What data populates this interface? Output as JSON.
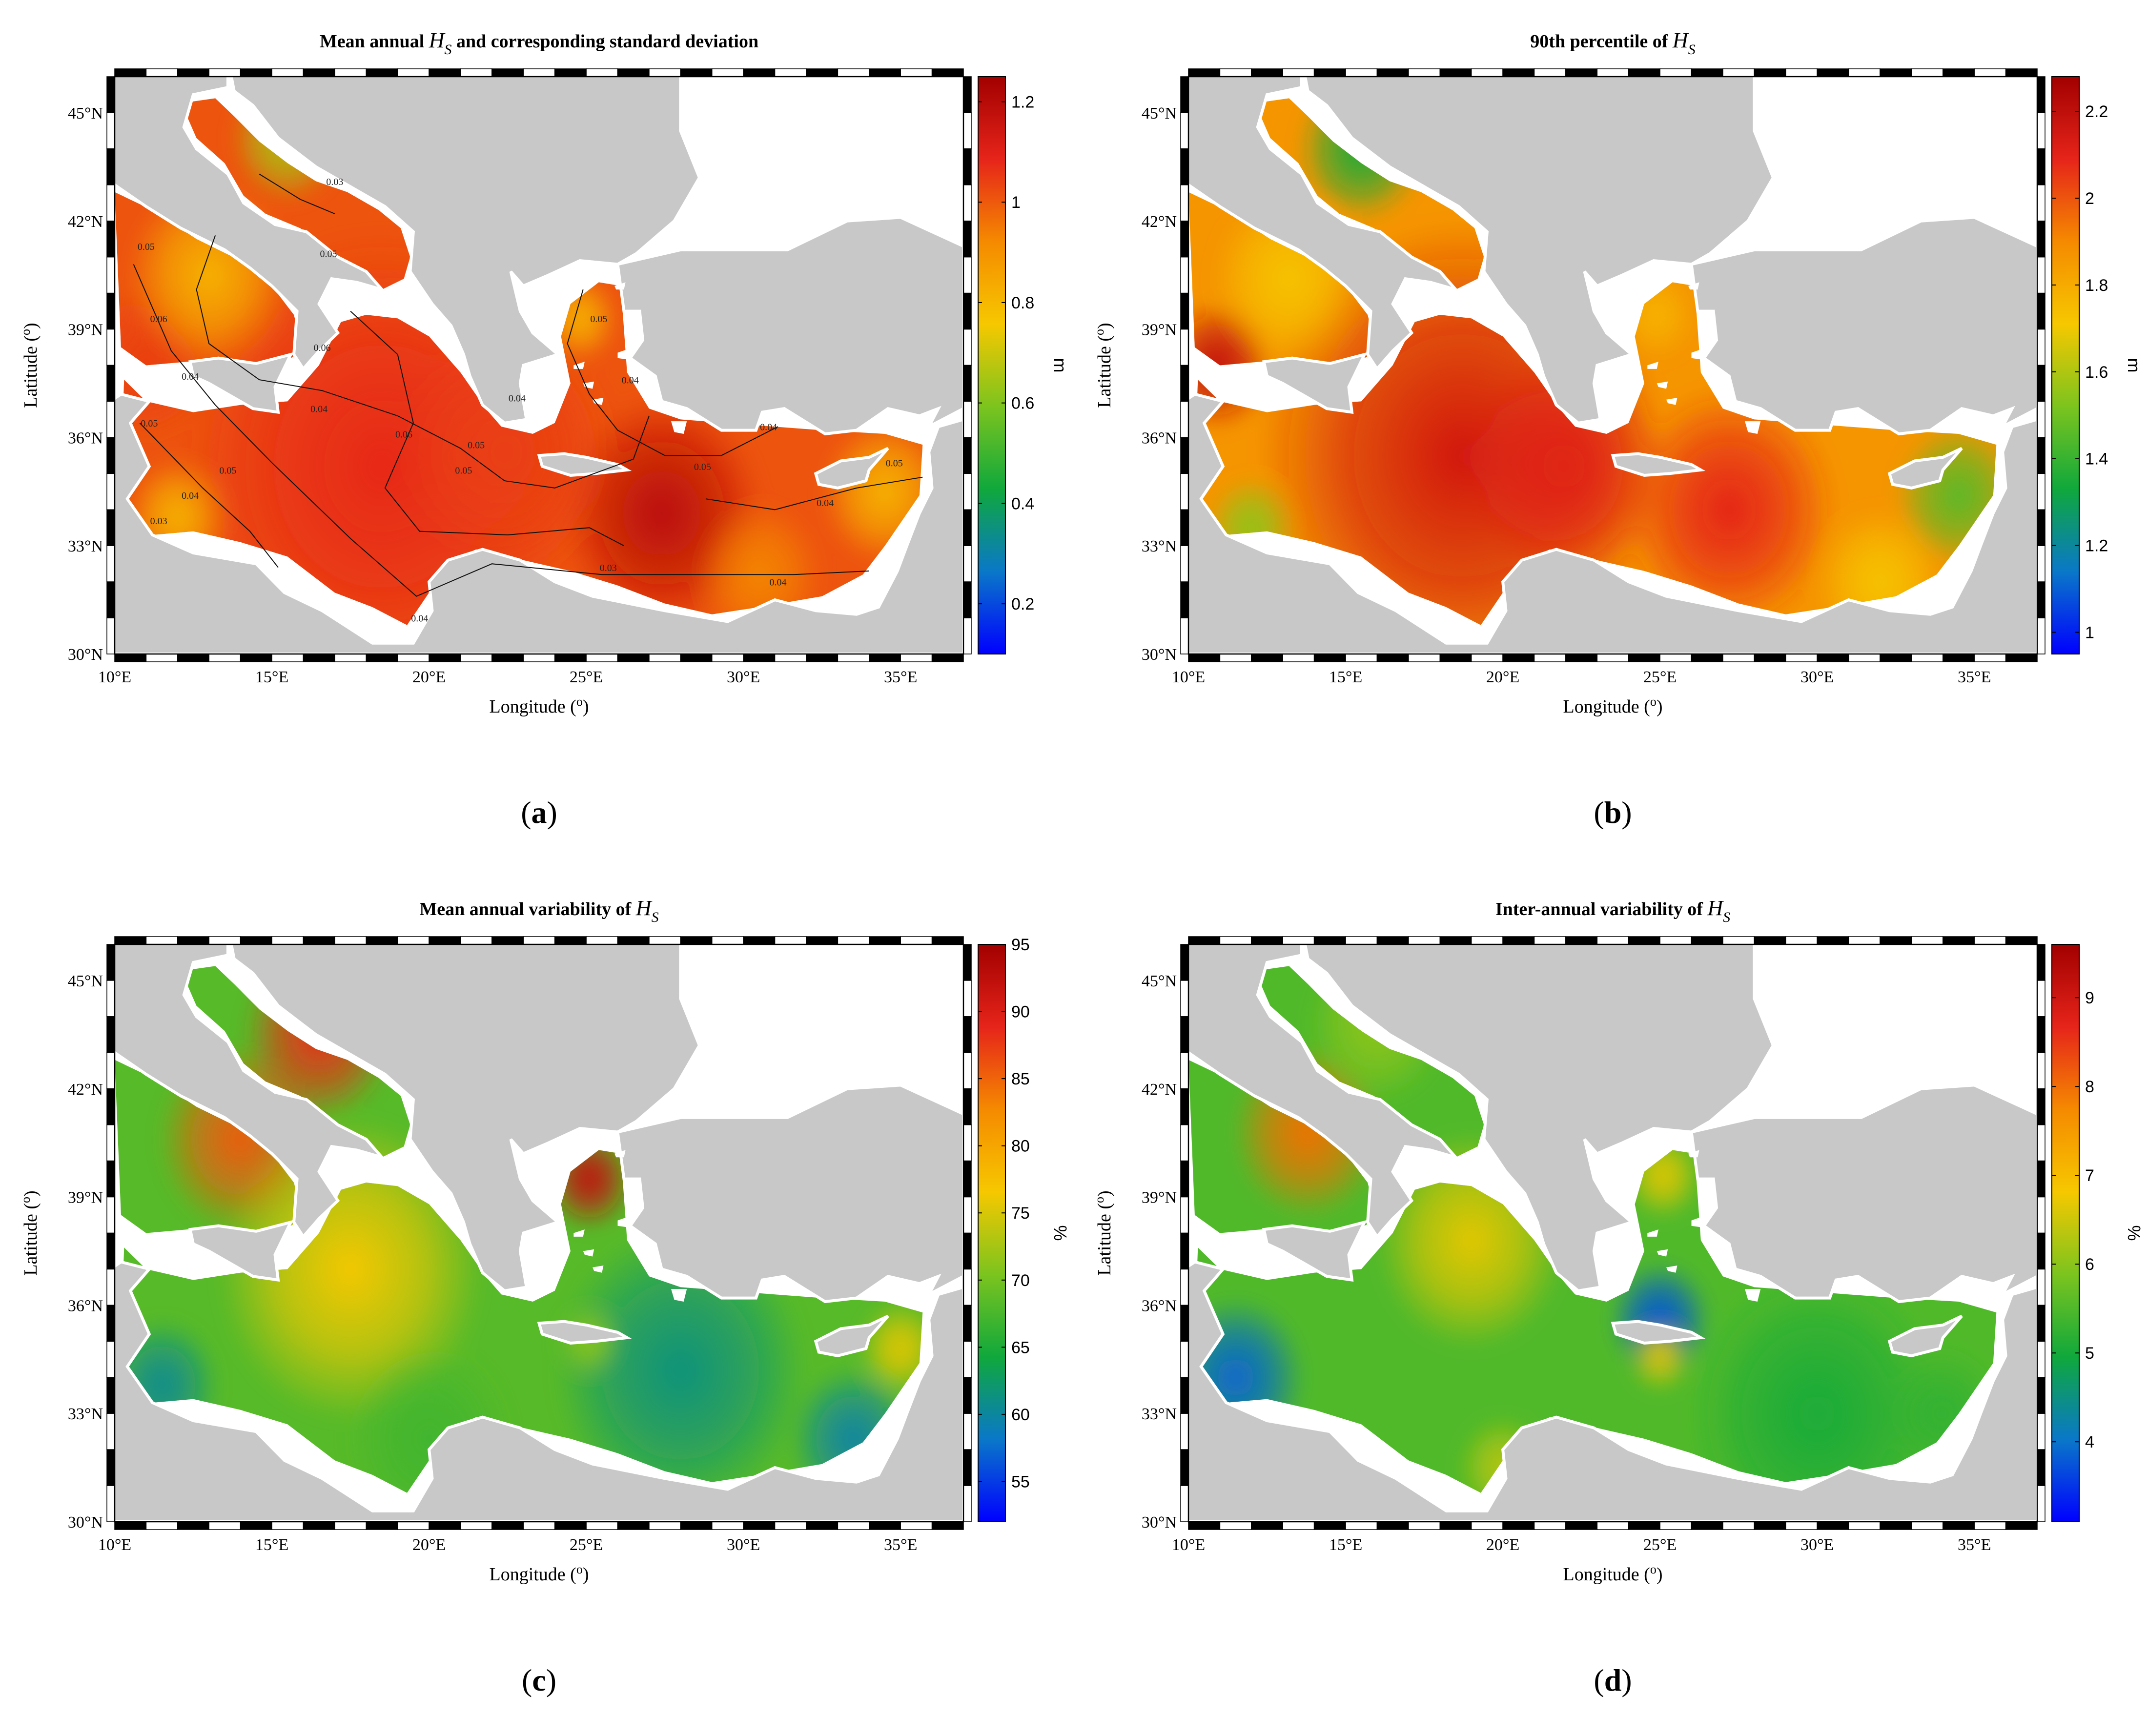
{
  "figure": {
    "panels": [
      {
        "id": "a",
        "label_open": "(",
        "label_letter": "a",
        "label_close": ")",
        "title_prefix": "Mean annual ",
        "title_var": "H",
        "title_sub": "S",
        "title_suffix": " and corresponding standard deviation",
        "colorbar": {
          "ticks": [
            "0.2",
            "0.4",
            "0.6",
            "0.8",
            "1",
            "1.2"
          ],
          "unit": "m",
          "min": 0.1,
          "max": 1.25
        },
        "contour_labels": [
          "0.05",
          "0.06",
          "0.04",
          "0.05",
          "0.06",
          "0.05",
          "0.06",
          "0.05",
          "0.04",
          "0.05",
          "0.04",
          "0.03",
          "0.04",
          "0.05",
          "0.04",
          "0.03",
          "0.05",
          "0.04",
          "0.04",
          "0.05",
          "0.03",
          "0.04",
          "0.04",
          "0.05"
        ]
      },
      {
        "id": "b",
        "label_open": "(",
        "label_letter": "b",
        "label_close": ")",
        "title_prefix": "90th percentile of ",
        "title_var": "H",
        "title_sub": "S",
        "title_suffix": "",
        "colorbar": {
          "ticks": [
            "1",
            "1.2",
            "1.4",
            "1.6",
            "1.8",
            "2",
            "2.2"
          ],
          "unit": "m",
          "min": 0.95,
          "max": 2.28
        }
      },
      {
        "id": "c",
        "label_open": "(",
        "label_letter": "c",
        "label_close": ")",
        "title_prefix": "Mean annual variability of ",
        "title_var": "H",
        "title_sub": "S",
        "title_suffix": "",
        "colorbar": {
          "ticks": [
            "55",
            "60",
            "65",
            "70",
            "75",
            "80",
            "85",
            "90",
            "95"
          ],
          "unit": "%",
          "min": 52,
          "max": 95
        }
      },
      {
        "id": "d",
        "label_open": "(",
        "label_letter": "d",
        "label_close": ")",
        "title_prefix": "Inter-annual variability of ",
        "title_var": "H",
        "title_sub": "S",
        "title_suffix": "",
        "colorbar": {
          "ticks": [
            "4",
            "5",
            "6",
            "7",
            "8",
            "9"
          ],
          "unit": "%",
          "min": 3.1,
          "max": 9.6
        }
      }
    ],
    "axes": {
      "xlabel": "Longitude (",
      "xlabel_sup": "o",
      "xlabel_close": ")",
      "ylabel": "Latitude (",
      "ylabel_sup": "o",
      "ylabel_close": ")",
      "xticks": [
        "10°E",
        "15°E",
        "20°E",
        "25°E",
        "30°E",
        "35°E"
      ],
      "yticks": [
        "30°N",
        "33°N",
        "36°N",
        "39°N",
        "42°N",
        "45°N"
      ],
      "xlim": [
        10,
        37
      ],
      "ylim": [
        30,
        46
      ]
    },
    "colors": {
      "land": "#c8c8c8",
      "coast_margin": "#ffffff",
      "colormap": [
        "#0000ff",
        "#0a78c8",
        "#10a83c",
        "#7cc41e",
        "#f6c800",
        "#f58a00",
        "#e6241a",
        "#a20000"
      ]
    }
  }
}
